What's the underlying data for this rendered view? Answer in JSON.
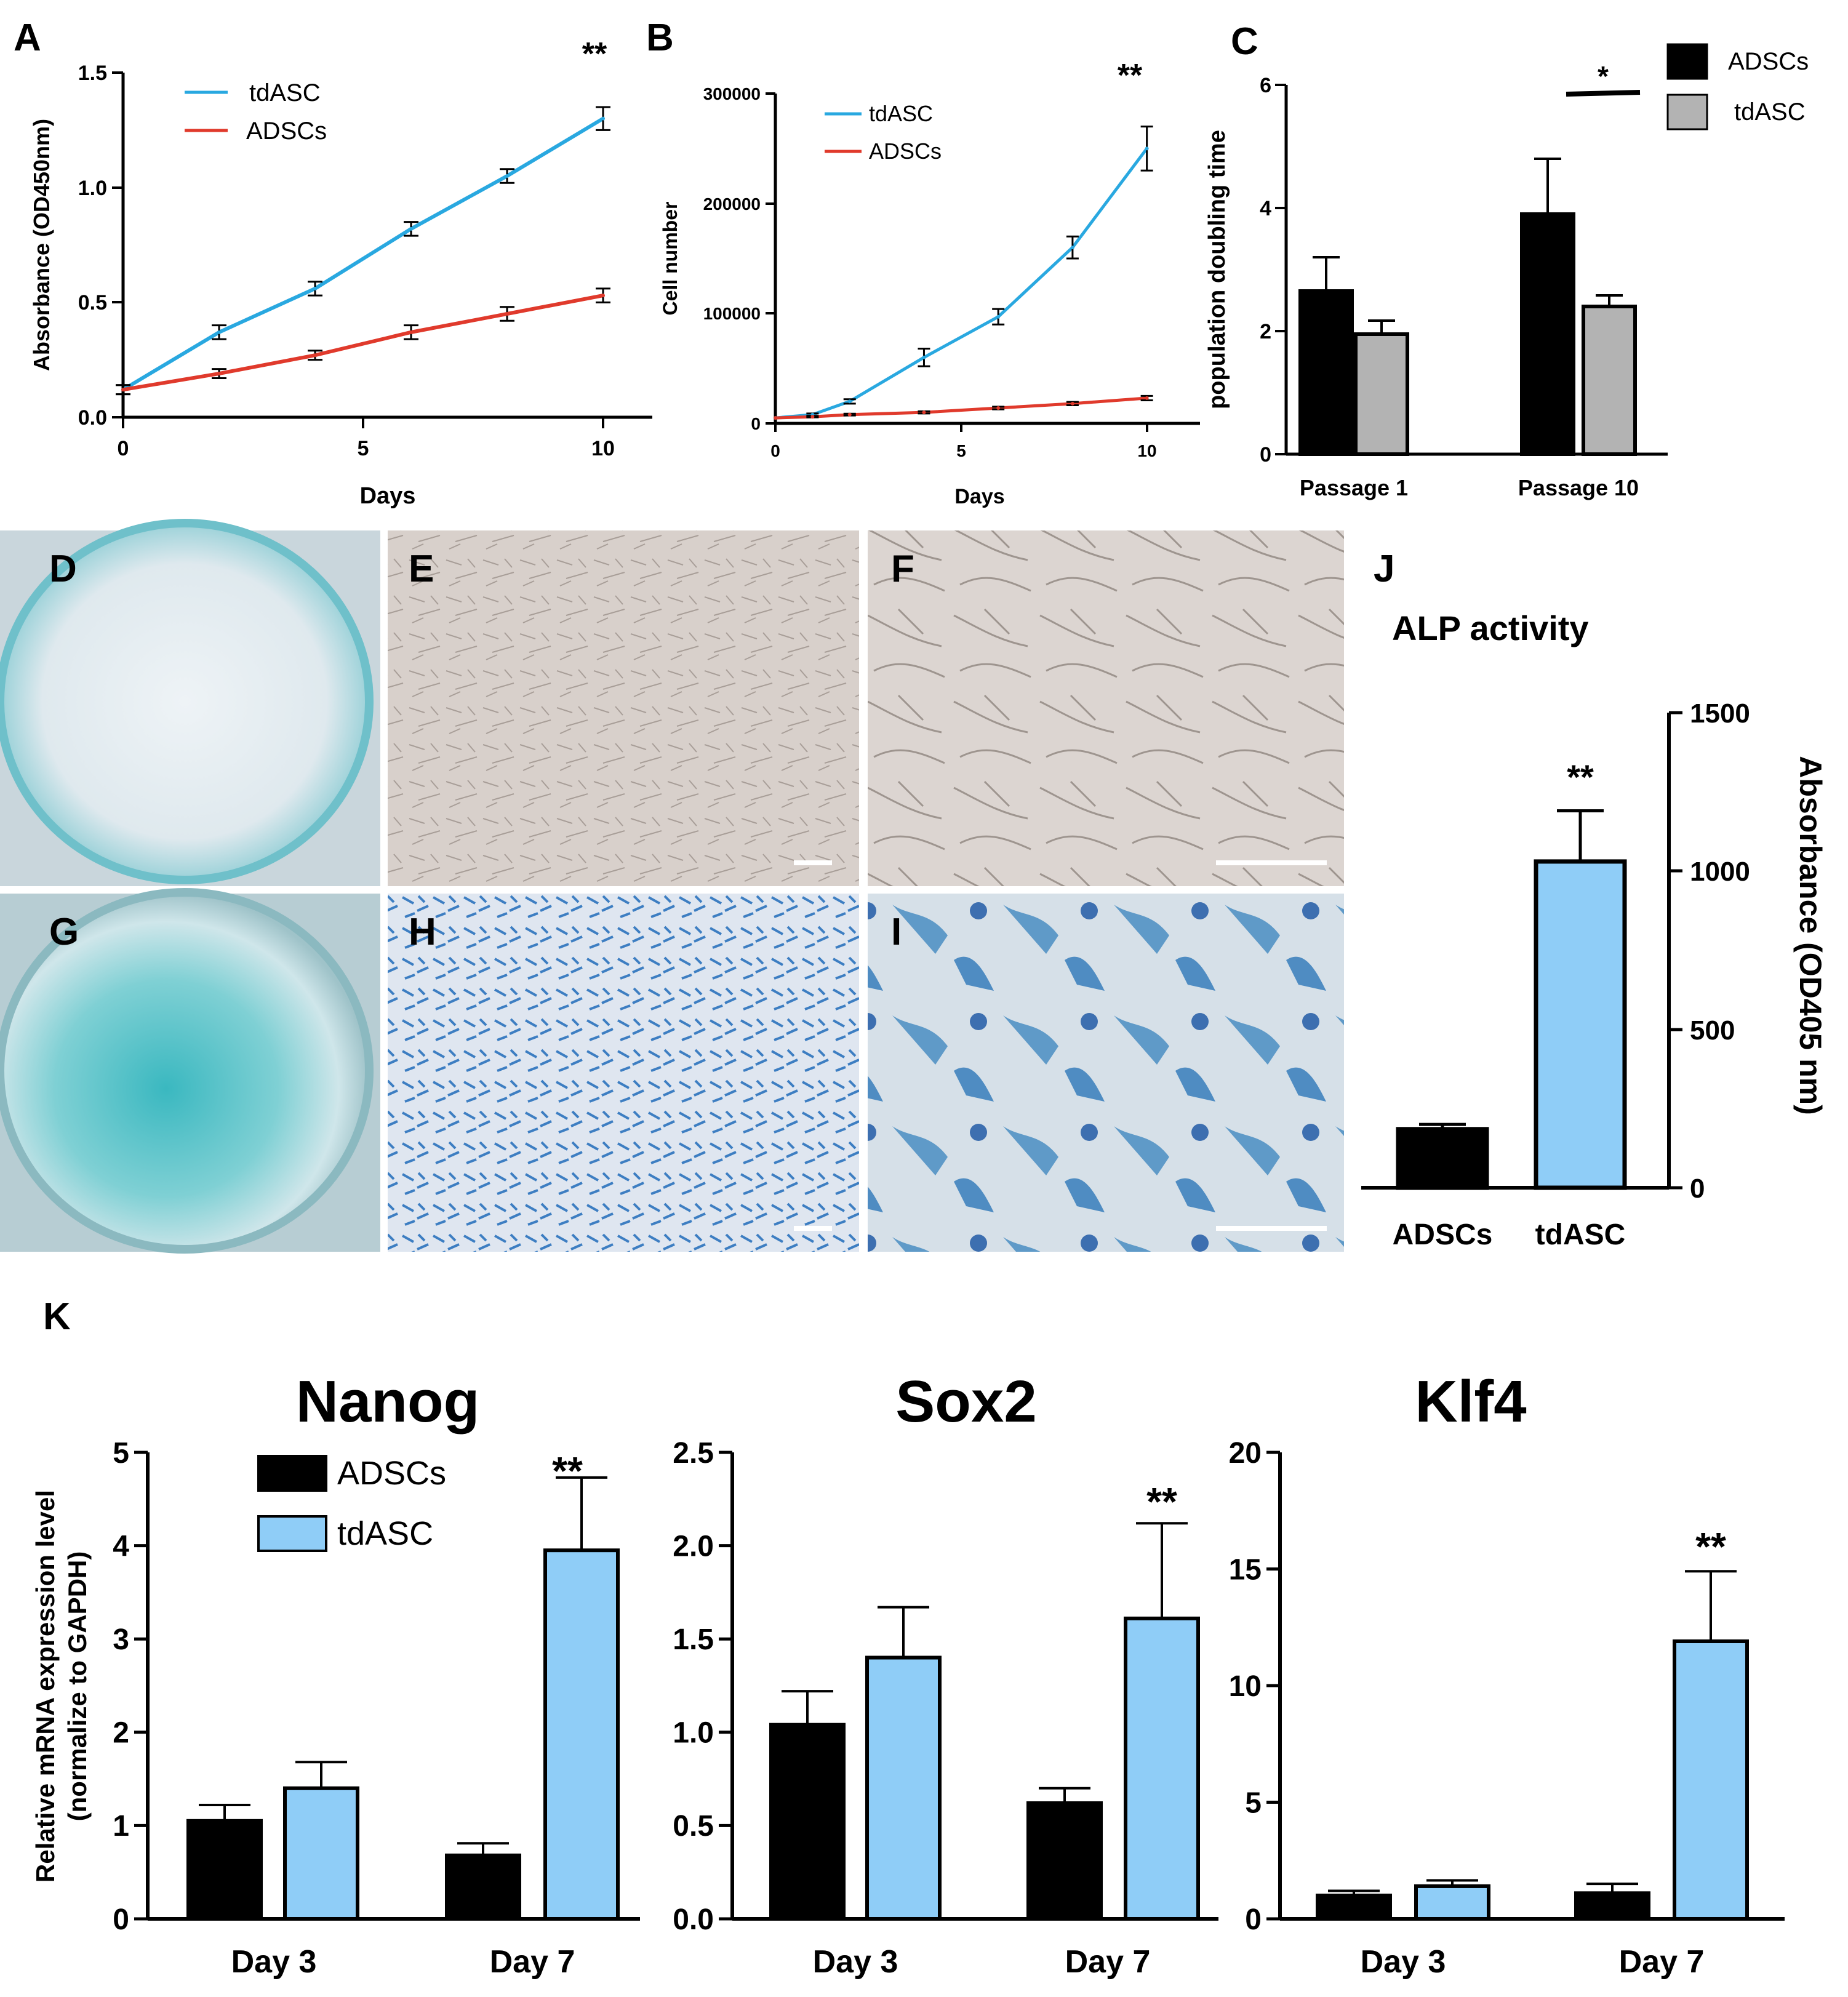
{
  "figure": {
    "panel_labels": {
      "A": "A",
      "B": "B",
      "C": "C",
      "D": "D",
      "E": "E",
      "F": "F",
      "G": "G",
      "H": "H",
      "I": "I",
      "J": "J",
      "K": "K"
    }
  },
  "colors": {
    "tdASC_line": "#29a8e0",
    "ADSCs_line": "#e03a2c",
    "tdASC_bar": "#8fcdf7",
    "ADSCs_bar": "#000000",
    "gray_bar": "#b3b3b3",
    "error": "#000000"
  },
  "chart_data": [
    {
      "id": "A",
      "type": "line",
      "xlabel": "Days",
      "ylabel": "Absorbance (OD450nm)",
      "xlim": [
        0,
        11
      ],
      "ylim": [
        0,
        1.5
      ],
      "xticks": [
        "0",
        "5",
        "10"
      ],
      "xtick_values": [
        0,
        5,
        10
      ],
      "yticks": [
        "0.0",
        "0.5",
        "1.0",
        "1.5"
      ],
      "ytick_values": [
        0,
        0.5,
        1.0,
        1.5
      ],
      "series": [
        {
          "name": "tdASC",
          "x": [
            0,
            2,
            4,
            6,
            8,
            10
          ],
          "values": [
            0.12,
            0.37,
            0.56,
            0.82,
            1.05,
            1.3
          ],
          "errors": [
            0.02,
            0.03,
            0.03,
            0.03,
            0.03,
            0.05
          ]
        },
        {
          "name": "ADSCs",
          "x": [
            0,
            2,
            4,
            6,
            8,
            10
          ],
          "values": [
            0.12,
            0.19,
            0.27,
            0.37,
            0.45,
            0.53
          ],
          "errors": [
            0.02,
            0.02,
            0.02,
            0.03,
            0.03,
            0.03
          ]
        }
      ],
      "annotation": "**"
    },
    {
      "id": "B",
      "type": "line",
      "xlabel": "Days",
      "ylabel": "Cell number",
      "xlim": [
        0,
        11
      ],
      "ylim": [
        0,
        300000
      ],
      "xticks": [
        "0",
        "5",
        "10"
      ],
      "xtick_values": [
        0,
        5,
        10
      ],
      "yticks": [
        "0",
        "100000",
        "200000",
        "300000"
      ],
      "ytick_values": [
        0,
        100000,
        200000,
        300000
      ],
      "series": [
        {
          "name": "tdASC",
          "x": [
            0,
            1,
            2,
            4,
            6,
            8,
            10
          ],
          "values": [
            5000,
            8000,
            20000,
            60000,
            97000,
            160000,
            250000
          ],
          "errors": [
            0,
            1000,
            2000,
            8000,
            7000,
            10000,
            20000
          ]
        },
        {
          "name": "ADSCs",
          "x": [
            0,
            1,
            2,
            4,
            6,
            8,
            10
          ],
          "values": [
            5000,
            6000,
            8000,
            10000,
            14000,
            18000,
            23000
          ],
          "errors": [
            0,
            500,
            800,
            1000,
            1200,
            1500,
            2000
          ]
        }
      ],
      "annotation": "**"
    },
    {
      "id": "C",
      "type": "bar",
      "ylabel": "population doubling time",
      "categories": [
        "Passage 1",
        "Passage 10"
      ],
      "ylim": [
        0,
        6
      ],
      "yticks": [
        "0",
        "2",
        "4",
        "6"
      ],
      "ytick_values": [
        0,
        2,
        4,
        6
      ],
      "series": [
        {
          "name": "ADSCs",
          "values": [
            2.65,
            3.9
          ],
          "errors": [
            0.55,
            0.9
          ]
        },
        {
          "name": "tdASC",
          "values": [
            1.95,
            2.4
          ],
          "errors": [
            0.22,
            0.18
          ]
        }
      ],
      "annotation": "*"
    },
    {
      "id": "J",
      "type": "bar",
      "title": "ALP activity",
      "ylabel": "Absorbance (OD405 nm)",
      "categories": [
        "ADSCs",
        "tdASC"
      ],
      "ylim": [
        0,
        1500
      ],
      "yticks": [
        "0",
        "500",
        "1000",
        "1500"
      ],
      "ytick_values": [
        0,
        500,
        1000,
        1500
      ],
      "values": [
        185,
        1030
      ],
      "errors": [
        15,
        160
      ],
      "annotation": "**"
    },
    {
      "id": "K-Nanog",
      "type": "bar",
      "title": "Nanog",
      "ylabel": "Relative mRNA expression level",
      "ylabel2": "(normalize to GAPDH)",
      "categories": [
        "Day 3",
        "Day 7"
      ],
      "ylim": [
        0,
        5
      ],
      "yticks": [
        "0",
        "1",
        "2",
        "3",
        "4",
        "5"
      ],
      "ytick_values": [
        0,
        1,
        2,
        3,
        4,
        5
      ],
      "series": [
        {
          "name": "ADSCs",
          "values": [
            1.05,
            0.68
          ],
          "errors": [
            0.17,
            0.13
          ]
        },
        {
          "name": "tdASC",
          "values": [
            1.4,
            3.95
          ],
          "errors": [
            0.28,
            0.78
          ]
        }
      ],
      "annotation": "**"
    },
    {
      "id": "K-Sox2",
      "type": "bar",
      "title": "Sox2",
      "categories": [
        "Day 3",
        "Day 7"
      ],
      "ylim": [
        0,
        2.5
      ],
      "yticks": [
        "0.0",
        "0.5",
        "1.0",
        "1.5",
        "2.0",
        "2.5"
      ],
      "ytick_values": [
        0,
        0.5,
        1.0,
        1.5,
        2.0,
        2.5
      ],
      "series": [
        {
          "name": "ADSCs",
          "values": [
            1.04,
            0.62
          ],
          "errors": [
            0.18,
            0.08
          ]
        },
        {
          "name": "tdASC",
          "values": [
            1.4,
            1.61
          ],
          "errors": [
            0.27,
            0.51
          ]
        }
      ],
      "annotation": "**"
    },
    {
      "id": "K-Klf4",
      "type": "bar",
      "title": "Klf4",
      "categories": [
        "Day 3",
        "Day 7"
      ],
      "ylim": [
        0,
        20
      ],
      "yticks": [
        "0",
        "5",
        "10",
        "15",
        "20"
      ],
      "ytick_values": [
        0,
        5,
        10,
        15,
        20
      ],
      "series": [
        {
          "name": "ADSCs",
          "values": [
            1.0,
            1.1
          ],
          "errors": [
            0.2,
            0.4
          ]
        },
        {
          "name": "tdASC",
          "values": [
            1.4,
            11.9
          ],
          "errors": [
            0.25,
            3.0
          ]
        }
      ],
      "annotation": "**"
    }
  ]
}
